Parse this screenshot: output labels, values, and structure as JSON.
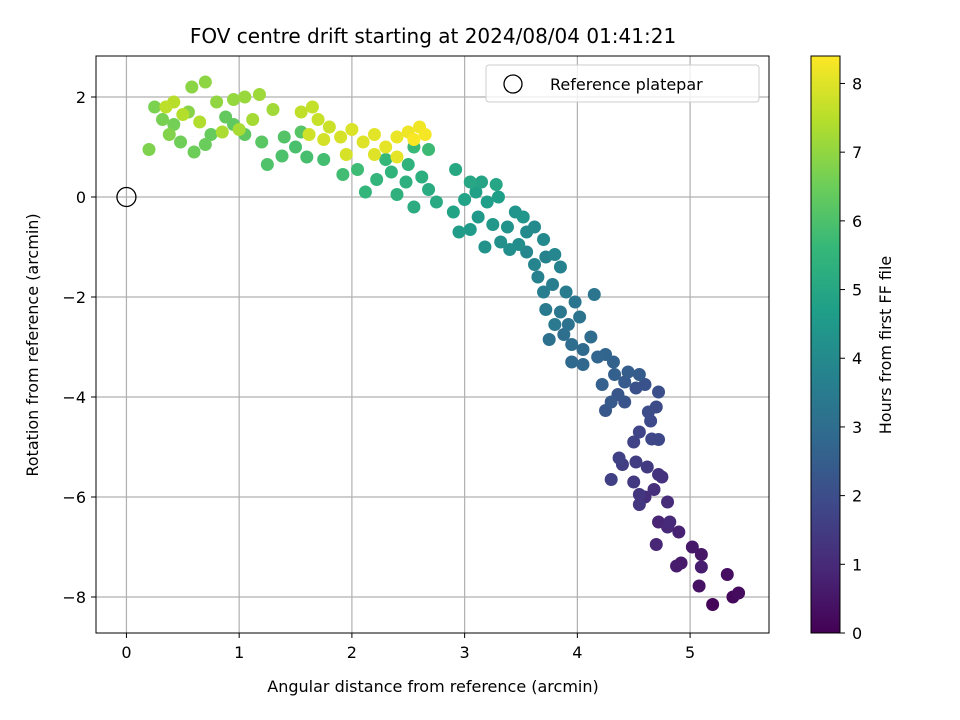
{
  "chart_data": {
    "type": "scatter",
    "title": "FOV centre drift starting at 2024/08/04 01:41:21",
    "xlabel": "Angular distance from reference (arcmin)",
    "ylabel": "Rotation from reference (arcmin)",
    "xlim": [
      -0.27,
      5.7
    ],
    "ylim": [
      -8.72,
      2.82
    ],
    "xticks": [
      0,
      1,
      2,
      3,
      4,
      5
    ],
    "yticks": [
      -8,
      -6,
      -4,
      -2,
      0,
      2
    ],
    "xtick_labels": [
      "0",
      "1",
      "2",
      "3",
      "4",
      "5"
    ],
    "ytick_labels": [
      "−8",
      "−6",
      "−4",
      "−2",
      "0",
      "2"
    ],
    "grid": true,
    "legend": {
      "placement": "top-right",
      "entries": [
        "Reference platepar"
      ]
    },
    "reference_point": {
      "x": 0,
      "y": 0,
      "label": "Reference platepar"
    },
    "colorbar": {
      "label": "Hours from first FF file",
      "range": [
        0,
        8.4
      ],
      "ticks": [
        0,
        1,
        2,
        3,
        4,
        5,
        6,
        7,
        8
      ],
      "tick_labels": [
        "0",
        "1",
        "2",
        "3",
        "4",
        "5",
        "6",
        "7",
        "8"
      ],
      "colormap": [
        "#440154",
        "#482878",
        "#3e4989",
        "#31688e",
        "#26828e",
        "#1f9e89",
        "#35b779",
        "#6ece58",
        "#b5de2b",
        "#fde725"
      ]
    },
    "points": [
      {
        "x": 5.2,
        "y": -8.15,
        "h": 0.1
      },
      {
        "x": 5.38,
        "y": -8.0,
        "h": 0.2
      },
      {
        "x": 5.43,
        "y": -7.92,
        "h": 0.25
      },
      {
        "x": 5.33,
        "y": -7.55,
        "h": 0.3
      },
      {
        "x": 5.08,
        "y": -7.78,
        "h": 0.4
      },
      {
        "x": 5.1,
        "y": -7.15,
        "h": 0.5
      },
      {
        "x": 5.02,
        "y": -7.0,
        "h": 0.55
      },
      {
        "x": 4.92,
        "y": -7.32,
        "h": 0.6
      },
      {
        "x": 4.88,
        "y": -7.38,
        "h": 0.65
      },
      {
        "x": 5.1,
        "y": -7.4,
        "h": 0.7
      },
      {
        "x": 4.9,
        "y": -6.7,
        "h": 0.8
      },
      {
        "x": 4.72,
        "y": -6.5,
        "h": 0.85
      },
      {
        "x": 4.7,
        "y": -6.95,
        "h": 0.9
      },
      {
        "x": 4.8,
        "y": -6.6,
        "h": 0.95
      },
      {
        "x": 4.82,
        "y": -6.5,
        "h": 1.0
      },
      {
        "x": 4.8,
        "y": -6.1,
        "h": 1.05
      },
      {
        "x": 4.6,
        "y": -6.0,
        "h": 1.1
      },
      {
        "x": 4.68,
        "y": -5.85,
        "h": 1.15
      },
      {
        "x": 4.75,
        "y": -5.6,
        "h": 1.2
      },
      {
        "x": 4.72,
        "y": -5.55,
        "h": 1.25
      },
      {
        "x": 4.55,
        "y": -5.95,
        "h": 1.3
      },
      {
        "x": 4.55,
        "y": -6.15,
        "h": 1.35
      },
      {
        "x": 4.5,
        "y": -5.7,
        "h": 1.4
      },
      {
        "x": 4.62,
        "y": -5.4,
        "h": 1.45
      },
      {
        "x": 4.52,
        "y": -5.3,
        "h": 1.5
      },
      {
        "x": 4.4,
        "y": -5.35,
        "h": 1.55
      },
      {
        "x": 4.3,
        "y": -5.65,
        "h": 1.6
      },
      {
        "x": 4.37,
        "y": -5.22,
        "h": 1.65
      },
      {
        "x": 4.5,
        "y": -4.9,
        "h": 1.7
      },
      {
        "x": 4.55,
        "y": -4.7,
        "h": 1.75
      },
      {
        "x": 4.66,
        "y": -4.84,
        "h": 1.8
      },
      {
        "x": 4.72,
        "y": -4.85,
        "h": 1.85
      },
      {
        "x": 4.65,
        "y": -4.48,
        "h": 1.9
      },
      {
        "x": 4.7,
        "y": -4.2,
        "h": 1.95
      },
      {
        "x": 4.63,
        "y": -4.3,
        "h": 2.0
      },
      {
        "x": 4.72,
        "y": -3.9,
        "h": 2.05
      },
      {
        "x": 4.52,
        "y": -3.82,
        "h": 2.1
      },
      {
        "x": 4.6,
        "y": -3.75,
        "h": 2.15
      },
      {
        "x": 4.42,
        "y": -4.1,
        "h": 2.2
      },
      {
        "x": 4.36,
        "y": -3.95,
        "h": 2.25
      },
      {
        "x": 4.25,
        "y": -4.27,
        "h": 2.3
      },
      {
        "x": 4.3,
        "y": -4.1,
        "h": 2.35
      },
      {
        "x": 4.42,
        "y": -3.7,
        "h": 2.4
      },
      {
        "x": 4.55,
        "y": -3.55,
        "h": 2.45
      },
      {
        "x": 4.45,
        "y": -3.5,
        "h": 2.5
      },
      {
        "x": 4.33,
        "y": -3.55,
        "h": 2.55
      },
      {
        "x": 4.22,
        "y": -3.75,
        "h": 2.6
      },
      {
        "x": 4.32,
        "y": -3.3,
        "h": 2.65
      },
      {
        "x": 4.25,
        "y": -3.15,
        "h": 2.7
      },
      {
        "x": 4.18,
        "y": -3.2,
        "h": 2.75
      },
      {
        "x": 4.05,
        "y": -3.35,
        "h": 2.8
      },
      {
        "x": 3.95,
        "y": -3.3,
        "h": 2.85
      },
      {
        "x": 4.05,
        "y": -3.05,
        "h": 2.9
      },
      {
        "x": 4.12,
        "y": -2.8,
        "h": 2.95
      },
      {
        "x": 3.95,
        "y": -2.95,
        "h": 3.0
      },
      {
        "x": 3.88,
        "y": -2.75,
        "h": 3.05
      },
      {
        "x": 3.75,
        "y": -2.85,
        "h": 3.1
      },
      {
        "x": 3.92,
        "y": -2.55,
        "h": 3.15
      },
      {
        "x": 4.02,
        "y": -2.4,
        "h": 3.2
      },
      {
        "x": 4.15,
        "y": -1.95,
        "h": 3.25
      },
      {
        "x": 3.98,
        "y": -2.1,
        "h": 3.3
      },
      {
        "x": 3.85,
        "y": -2.3,
        "h": 3.35
      },
      {
        "x": 3.8,
        "y": -2.55,
        "h": 3.4
      },
      {
        "x": 3.72,
        "y": -2.25,
        "h": 3.45
      },
      {
        "x": 3.9,
        "y": -1.9,
        "h": 3.5
      },
      {
        "x": 3.78,
        "y": -1.75,
        "h": 3.55
      },
      {
        "x": 3.7,
        "y": -1.9,
        "h": 3.6
      },
      {
        "x": 3.65,
        "y": -1.6,
        "h": 3.65
      },
      {
        "x": 3.85,
        "y": -1.4,
        "h": 3.7
      },
      {
        "x": 3.72,
        "y": -1.2,
        "h": 3.75
      },
      {
        "x": 3.62,
        "y": -1.35,
        "h": 3.8
      },
      {
        "x": 3.55,
        "y": -1.1,
        "h": 3.85
      },
      {
        "x": 3.8,
        "y": -1.15,
        "h": 3.9
      },
      {
        "x": 3.7,
        "y": -0.85,
        "h": 3.95
      },
      {
        "x": 3.62,
        "y": -0.6,
        "h": 4.0
      },
      {
        "x": 3.55,
        "y": -0.7,
        "h": 4.05
      },
      {
        "x": 3.48,
        "y": -0.95,
        "h": 4.1
      },
      {
        "x": 3.4,
        "y": -1.05,
        "h": 4.15
      },
      {
        "x": 3.32,
        "y": -0.9,
        "h": 4.2
      },
      {
        "x": 3.18,
        "y": -1.0,
        "h": 4.25
      },
      {
        "x": 3.38,
        "y": -0.6,
        "h": 4.3
      },
      {
        "x": 3.45,
        "y": -0.3,
        "h": 4.35
      },
      {
        "x": 3.52,
        "y": -0.4,
        "h": 4.4
      },
      {
        "x": 3.25,
        "y": -0.55,
        "h": 4.45
      },
      {
        "x": 3.12,
        "y": -0.4,
        "h": 4.5
      },
      {
        "x": 3.05,
        "y": -0.65,
        "h": 4.55
      },
      {
        "x": 2.95,
        "y": -0.7,
        "h": 4.6
      },
      {
        "x": 3.2,
        "y": -0.1,
        "h": 4.65
      },
      {
        "x": 3.3,
        "y": 0.0,
        "h": 4.7
      },
      {
        "x": 3.1,
        "y": 0.1,
        "h": 4.75
      },
      {
        "x": 3.0,
        "y": -0.05,
        "h": 4.8
      },
      {
        "x": 2.9,
        "y": -0.3,
        "h": 4.85
      },
      {
        "x": 3.15,
        "y": 0.3,
        "h": 4.9
      },
      {
        "x": 3.28,
        "y": 0.25,
        "h": 4.95
      },
      {
        "x": 3.05,
        "y": 0.3,
        "h": 5.0
      },
      {
        "x": 2.92,
        "y": 0.55,
        "h": 5.05
      },
      {
        "x": 2.75,
        "y": -0.1,
        "h": 5.1
      },
      {
        "x": 2.68,
        "y": 0.15,
        "h": 5.15
      },
      {
        "x": 2.55,
        "y": -0.2,
        "h": 5.2
      },
      {
        "x": 2.62,
        "y": 0.4,
        "h": 5.25
      },
      {
        "x": 2.48,
        "y": 0.3,
        "h": 5.3
      },
      {
        "x": 2.4,
        "y": 0.05,
        "h": 5.35
      },
      {
        "x": 2.5,
        "y": 0.65,
        "h": 5.4
      },
      {
        "x": 2.35,
        "y": 0.5,
        "h": 5.45
      },
      {
        "x": 2.22,
        "y": 0.35,
        "h": 5.5
      },
      {
        "x": 2.12,
        "y": 0.1,
        "h": 5.55
      },
      {
        "x": 2.3,
        "y": 0.75,
        "h": 5.6
      },
      {
        "x": 2.55,
        "y": 1.0,
        "h": 5.65
      },
      {
        "x": 2.68,
        "y": 0.95,
        "h": 5.7
      },
      {
        "x": 2.05,
        "y": 0.55,
        "h": 5.75
      },
      {
        "x": 1.92,
        "y": 0.45,
        "h": 5.8
      },
      {
        "x": 1.75,
        "y": 0.75,
        "h": 5.85
      },
      {
        "x": 1.6,
        "y": 0.8,
        "h": 5.9
      },
      {
        "x": 1.5,
        "y": 1.0,
        "h": 5.95
      },
      {
        "x": 1.38,
        "y": 0.82,
        "h": 6.0
      },
      {
        "x": 1.25,
        "y": 0.65,
        "h": 6.05
      },
      {
        "x": 1.4,
        "y": 1.2,
        "h": 6.1
      },
      {
        "x": 1.55,
        "y": 1.3,
        "h": 6.15
      },
      {
        "x": 1.2,
        "y": 1.1,
        "h": 6.2
      },
      {
        "x": 1.05,
        "y": 1.25,
        "h": 6.25
      },
      {
        "x": 0.95,
        "y": 1.45,
        "h": 6.3
      },
      {
        "x": 0.88,
        "y": 1.6,
        "h": 6.35
      },
      {
        "x": 0.75,
        "y": 1.25,
        "h": 6.4
      },
      {
        "x": 0.7,
        "y": 1.05,
        "h": 6.45
      },
      {
        "x": 0.6,
        "y": 0.9,
        "h": 6.5
      },
      {
        "x": 0.48,
        "y": 1.1,
        "h": 6.55
      },
      {
        "x": 0.42,
        "y": 1.45,
        "h": 6.6
      },
      {
        "x": 0.32,
        "y": 1.55,
        "h": 6.65
      },
      {
        "x": 0.25,
        "y": 1.8,
        "h": 6.7
      },
      {
        "x": 0.2,
        "y": 0.95,
        "h": 6.75
      },
      {
        "x": 0.38,
        "y": 1.25,
        "h": 6.8
      },
      {
        "x": 0.55,
        "y": 1.7,
        "h": 6.85
      },
      {
        "x": 0.58,
        "y": 2.2,
        "h": 6.9
      },
      {
        "x": 0.7,
        "y": 2.3,
        "h": 6.95
      },
      {
        "x": 0.8,
        "y": 1.9,
        "h": 7.0
      },
      {
        "x": 0.95,
        "y": 1.95,
        "h": 7.05
      },
      {
        "x": 1.05,
        "y": 2.0,
        "h": 7.1
      },
      {
        "x": 1.18,
        "y": 2.05,
        "h": 7.15
      },
      {
        "x": 1.3,
        "y": 1.75,
        "h": 7.2
      },
      {
        "x": 1.12,
        "y": 1.55,
        "h": 7.25
      },
      {
        "x": 1.0,
        "y": 1.35,
        "h": 7.3
      },
      {
        "x": 0.85,
        "y": 1.3,
        "h": 7.35
      },
      {
        "x": 0.65,
        "y": 1.5,
        "h": 7.4
      },
      {
        "x": 0.5,
        "y": 1.65,
        "h": 7.45
      },
      {
        "x": 0.42,
        "y": 1.9,
        "h": 7.5
      },
      {
        "x": 0.35,
        "y": 1.8,
        "h": 7.55
      },
      {
        "x": 1.55,
        "y": 1.7,
        "h": 7.6
      },
      {
        "x": 1.65,
        "y": 1.8,
        "h": 7.65
      },
      {
        "x": 1.7,
        "y": 1.55,
        "h": 7.7
      },
      {
        "x": 1.8,
        "y": 1.4,
        "h": 7.75
      },
      {
        "x": 1.62,
        "y": 1.25,
        "h": 7.8
      },
      {
        "x": 1.75,
        "y": 1.15,
        "h": 7.85
      },
      {
        "x": 1.9,
        "y": 1.2,
        "h": 7.9
      },
      {
        "x": 2.0,
        "y": 1.35,
        "h": 7.95
      },
      {
        "x": 2.1,
        "y": 1.1,
        "h": 8.0
      },
      {
        "x": 2.2,
        "y": 1.25,
        "h": 8.05
      },
      {
        "x": 2.3,
        "y": 1.0,
        "h": 8.1
      },
      {
        "x": 2.4,
        "y": 1.2,
        "h": 8.15
      },
      {
        "x": 2.5,
        "y": 1.3,
        "h": 8.2
      },
      {
        "x": 2.6,
        "y": 1.4,
        "h": 8.25
      },
      {
        "x": 2.65,
        "y": 1.25,
        "h": 8.3
      },
      {
        "x": 2.55,
        "y": 1.15,
        "h": 8.35
      },
      {
        "x": 2.2,
        "y": 0.85,
        "h": 8.0
      },
      {
        "x": 1.95,
        "y": 0.85,
        "h": 7.9
      },
      {
        "x": 2.4,
        "y": 0.8,
        "h": 8.1
      }
    ]
  }
}
